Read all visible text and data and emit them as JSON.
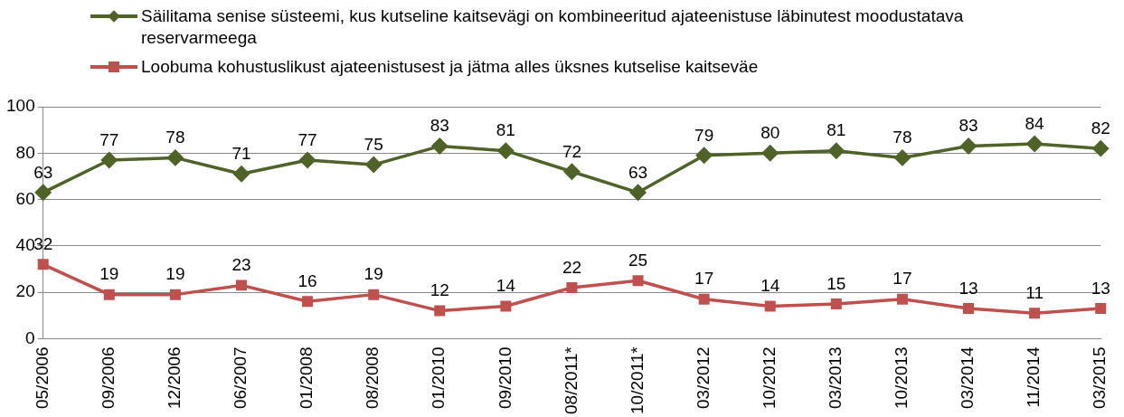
{
  "chart_data": {
    "type": "line",
    "categories": [
      "05/2006",
      "09/2006",
      "12/2006",
      "06/2007",
      "01/2008",
      "08/2008",
      "01/2010",
      "09/2010",
      "08/2011*",
      "10/2011*",
      "03/2012",
      "10/2012",
      "03/2013",
      "10/2013",
      "03/2014",
      "11/2014",
      "03/2015"
    ],
    "series": [
      {
        "name": "Säilitama senise süsteemi, kus kutseline kaitsevägi on kombineeritud ajateenistuse läbinutest moodustatava reservarmeega",
        "color": "#4f6228",
        "marker": "diamond",
        "values": [
          63,
          77,
          78,
          71,
          77,
          75,
          83,
          81,
          72,
          63,
          79,
          80,
          81,
          78,
          83,
          84,
          82
        ]
      },
      {
        "name": "Loobuma kohustuslikust ajateenistusest ja jätma alles üksnes kutselise kaitseväe",
        "color": "#c0504d",
        "marker": "square",
        "values": [
          32,
          19,
          19,
          23,
          16,
          19,
          12,
          14,
          22,
          25,
          17,
          14,
          15,
          17,
          13,
          11,
          13
        ]
      }
    ],
    "ylim": [
      0,
      100
    ],
    "yticks": [
      0,
      20,
      40,
      60,
      80,
      100
    ],
    "grid": "y",
    "legend": "top",
    "data_labels": true,
    "line_style": "solid"
  }
}
